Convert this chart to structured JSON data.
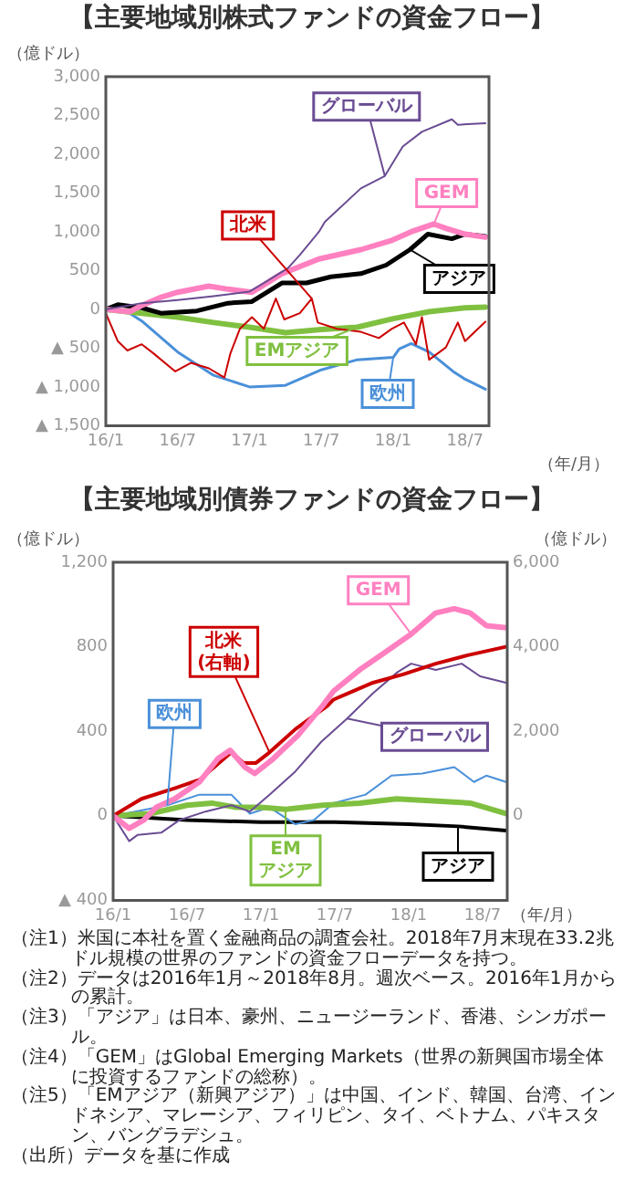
{
  "chart_data": [
    {
      "type": "line",
      "title": "【主要地域別株式ファンドの資金フロー】",
      "ylabel": "（億ドル）",
      "xlabel": "（年/月）",
      "xlim": [
        "2016-01-01",
        "2018-09-01"
      ],
      "xticks": [
        {
          "value": "2016-01",
          "label": "16/1"
        },
        {
          "value": "2016-07",
          "label": "16/7"
        },
        {
          "value": "2017-01",
          "label": "17/1"
        },
        {
          "value": "2017-07",
          "label": "17/7"
        },
        {
          "value": "2018-01",
          "label": "18/1"
        },
        {
          "value": "2018-07",
          "label": "18/7"
        }
      ],
      "ylim": [
        -1500,
        3000
      ],
      "yticks": [
        {
          "value": -1500,
          "label": "▲ 1,500"
        },
        {
          "value": -1000,
          "label": "▲ 1,000"
        },
        {
          "value": -500,
          "label": "▲ 500"
        },
        0,
        500,
        {
          "value": 1000,
          "label": "1,000"
        },
        {
          "value": 1500,
          "label": "1,500"
        },
        {
          "value": 2000,
          "label": "2,000"
        },
        {
          "value": 2500,
          "label": "2,500"
        },
        {
          "value": 3000,
          "label": "3,000"
        }
      ],
      "series": [
        {
          "name": "グローバル",
          "color": "#6a4c93",
          "x": [
            "2016-01-01",
            "2016-04-01",
            "2016-07-01",
            "2016-10-01",
            "2017-01-01",
            "2017-02-07",
            "2017-04-07",
            "2017-05-07",
            "2017-06-25",
            "2017-07-10",
            "2017-10-10",
            "2017-12-10",
            "2018-01-25",
            "2018-03-13",
            "2018-05-28",
            "2018-06-13",
            "2018-08-22"
          ],
          "values": [
            0,
            80,
            120,
            170,
            230,
            340,
            530,
            700,
            1000,
            1130,
            1560,
            1720,
            2100,
            2290,
            2450,
            2380,
            2400
          ]
        },
        {
          "name": "GEM",
          "color": "#ff80c0",
          "x": [
            "2016-01-01",
            "2016-03-01",
            "2016-04-01",
            "2016-05-16",
            "2016-07-01",
            "2016-09-19",
            "2016-11-07",
            "2017-01-07",
            "2017-03-22",
            "2017-06-25",
            "2017-10-10",
            "2017-12-28",
            "2018-02-16",
            "2018-04-13",
            "2018-05-16",
            "2018-07-01",
            "2018-08-22"
          ],
          "values": [
            0,
            -30,
            50,
            150,
            220,
            300,
            260,
            220,
            460,
            650,
            770,
            890,
            1000,
            1100,
            1040,
            970,
            930
          ]
        },
        {
          "name": "アジア",
          "color": "#000000",
          "x": [
            "2016-01-01",
            "2016-02-01",
            "2016-04-01",
            "2016-05-19",
            "2016-08-19",
            "2016-11-07",
            "2017-01-07",
            "2017-03-22",
            "2017-05-24",
            "2017-07-25",
            "2017-10-10",
            "2017-12-13",
            "2018-02-13",
            "2018-03-28",
            "2018-05-28",
            "2018-07-01",
            "2018-08-22"
          ],
          "values": [
            0,
            60,
            20,
            -50,
            -20,
            80,
            100,
            340,
            340,
            420,
            460,
            570,
            770,
            970,
            910,
            970,
            940
          ]
        },
        {
          "name": "北米",
          "color": "#cc0000",
          "x": [
            "2016-01-01",
            "2016-02-01",
            "2016-02-25",
            "2016-04-01",
            "2016-05-01",
            "2016-06-25",
            "2016-08-04",
            "2016-09-19",
            "2016-10-28",
            "2016-11-13",
            "2016-12-07",
            "2017-01-07",
            "2017-02-07",
            "2017-03-07",
            "2017-03-28",
            "2017-05-07",
            "2017-06-07",
            "2017-06-22",
            "2017-08-10",
            "2017-10-10",
            "2017-11-25",
            "2017-12-28",
            "2018-01-28",
            "2018-02-28",
            "2018-03-13",
            "2018-04-01",
            "2018-05-13",
            "2018-06-13",
            "2018-07-01",
            "2018-08-22"
          ],
          "values": [
            -50,
            -410,
            -530,
            -450,
            -570,
            -800,
            -690,
            -760,
            -880,
            -570,
            -250,
            -100,
            -250,
            140,
            -130,
            -50,
            140,
            -170,
            -250,
            -290,
            -370,
            -250,
            -170,
            -450,
            -100,
            -650,
            -490,
            -170,
            -410,
            -160
          ]
        },
        {
          "name": "EMアジア",
          "color": "#80c040",
          "x": [
            "2016-01-01",
            "2016-04-01",
            "2016-07-01",
            "2016-10-01",
            "2017-01-01",
            "2017-04-01",
            "2017-07-01",
            "2017-10-01",
            "2018-01-01",
            "2018-04-01",
            "2018-07-01",
            "2018-08-22"
          ],
          "values": [
            0,
            -50,
            -100,
            -170,
            -230,
            -300,
            -260,
            -230,
            -120,
            -30,
            20,
            30
          ]
        },
        {
          "name": "欧州",
          "color": "#4a90d9",
          "x": [
            "2016-01-01",
            "2016-03-01",
            "2016-04-01",
            "2016-07-01",
            "2016-10-01",
            "2017-01-01",
            "2017-04-01",
            "2017-07-01",
            "2017-10-01",
            "2018-01-01",
            "2018-01-16",
            "2018-02-16",
            "2018-04-01",
            "2018-06-01",
            "2018-07-01",
            "2018-08-22"
          ],
          "values": [
            0,
            -50,
            -150,
            -550,
            -850,
            -1000,
            -980,
            -780,
            -650,
            -620,
            -510,
            -440,
            -550,
            -800,
            -900,
            -1030
          ]
        }
      ]
    },
    {
      "type": "line",
      "title": "【主要地域別債券ファンドの資金フロー】",
      "ylabel": "（億ドル）",
      "y2label": "（億ドル）",
      "xlabel": "（年/月）",
      "xlim": [
        "2016-01-01",
        "2018-09-01"
      ],
      "xticks": [
        {
          "value": "2016-01",
          "label": "16/1"
        },
        {
          "value": "2016-07",
          "label": "16/7"
        },
        {
          "value": "2017-01",
          "label": "17/1"
        },
        {
          "value": "2017-07",
          "label": "17/7"
        },
        {
          "value": "2018-01",
          "label": "18/1"
        },
        {
          "value": "2018-07",
          "label": "18/7"
        }
      ],
      "ylim": [
        -400,
        1200
      ],
      "yticks": [
        {
          "value": -400,
          "label": "▲ 400"
        },
        0,
        400,
        800,
        {
          "value": 1200,
          "label": "1,200"
        }
      ],
      "y2lim": [
        -2000,
        6000
      ],
      "y2ticks": [
        0,
        {
          "value": 2000,
          "label": "2,000"
        },
        {
          "value": 4000,
          "label": "4,000"
        },
        {
          "value": 6000,
          "label": "6,000"
        }
      ],
      "series": [
        {
          "name": "GEM",
          "color": "#ff80c0",
          "x": [
            "2016-01-01",
            "2016-02-10",
            "2016-03-16",
            "2016-04-16",
            "2016-06-01",
            "2016-08-01",
            "2016-09-16",
            "2016-10-16",
            "2016-11-22",
            "2016-12-16",
            "2017-02-01",
            "2017-04-01",
            "2017-06-01",
            "2017-06-28",
            "2017-09-01",
            "2017-11-01",
            "2018-01-07",
            "2018-03-07",
            "2018-04-22",
            "2018-06-01",
            "2018-07-10",
            "2018-08-28"
          ],
          "values": [
            0,
            -60,
            -20,
            40,
            80,
            160,
            270,
            310,
            230,
            200,
            270,
            380,
            520,
            590,
            690,
            770,
            860,
            960,
            980,
            960,
            900,
            890
          ]
        },
        {
          "name": "北米\n(右軸)",
          "color": "#cc0000",
          "axis": "y2",
          "x": [
            "2016-01-01",
            "2016-03-10",
            "2016-06-01",
            "2016-08-01",
            "2016-10-19",
            "2016-11-19",
            "2016-12-19",
            "2017-01-22",
            "2017-03-25",
            "2017-06-13",
            "2017-06-28",
            "2017-10-04",
            "2017-12-19",
            "2018-03-07",
            "2018-05-25",
            "2018-08-28"
          ],
          "values": [
            0,
            400,
            650,
            850,
            1500,
            1250,
            1250,
            1500,
            2050,
            2600,
            2750,
            3150,
            3350,
            3600,
            3800,
            4000
          ]
        },
        {
          "name": "グローバル",
          "color": "#6a4c93",
          "x": [
            "2016-01-01",
            "2016-02-10",
            "2016-03-01",
            "2016-04-28",
            "2016-06-13",
            "2016-08-16",
            "2016-10-19",
            "2016-12-04",
            "2017-01-22",
            "2017-03-25",
            "2017-05-28",
            "2017-08-01",
            "2017-10-04",
            "2017-12-04",
            "2018-01-07",
            "2018-03-07",
            "2018-05-10",
            "2018-06-25",
            "2018-08-28"
          ],
          "values": [
            0,
            -120,
            -90,
            -80,
            -20,
            20,
            50,
            20,
            100,
            210,
            350,
            460,
            580,
            680,
            720,
            690,
            720,
            660,
            630
          ]
        },
        {
          "name": "EM\nアジア",
          "color": "#80c040",
          "x": [
            "2016-01-01",
            "2016-04-01",
            "2016-07-01",
            "2016-09-01",
            "2016-11-01",
            "2017-01-01",
            "2017-03-01",
            "2017-06-01",
            "2017-09-01",
            "2017-12-01",
            "2018-03-01",
            "2018-06-01",
            "2018-08-28"
          ],
          "values": [
            0,
            10,
            50,
            60,
            40,
            40,
            30,
            50,
            60,
            80,
            70,
            60,
            10
          ]
        },
        {
          "name": "欧州",
          "color": "#4a90d9",
          "x": [
            "2016-01-01",
            "2016-02-25",
            "2016-05-13",
            "2016-08-01",
            "2016-10-19",
            "2016-12-04",
            "2017-01-22",
            "2017-03-25",
            "2017-05-10",
            "2017-06-28",
            "2017-09-16",
            "2017-11-19",
            "2018-02-04",
            "2018-04-22",
            "2018-06-10",
            "2018-07-10",
            "2018-08-28"
          ],
          "values": [
            0,
            20,
            50,
            100,
            100,
            10,
            40,
            -40,
            -20,
            60,
            100,
            190,
            200,
            230,
            160,
            190,
            160
          ]
        },
        {
          "name": "アジア",
          "color": "#000000",
          "x": [
            "2016-01-01",
            "2016-07-01",
            "2017-01-01",
            "2017-07-01",
            "2018-01-01",
            "2018-05-01",
            "2018-08-28"
          ],
          "values": [
            0,
            -20,
            -30,
            -30,
            -40,
            -50,
            -70
          ]
        }
      ],
      "annotations": [
        "（注1）米国に本社を置く金融商品の調査会社。2018年7月末現在33.2兆ドル規模の世界のファンドの資金フローデータを持つ。",
        "（注2）データは2016年1月～2018年8月。週次ベース。2016年1月からの累計。",
        "（注3）「アジア」は日本、豪州、ニュージーランド、香港、シンガポール。",
        "（注4）「GEM」はGlobal Emerging Markets（世界の新興国市場全体に投資するファンドの総称）。",
        "（注5）「EMアジア（新興アジア）」は中国、インド、韓国、台湾、インドネシア、マレーシア、フィリピン、タイ、ベトナム、パキスタン、バングラデシュ。",
        "（出所）データを基に作成"
      ]
    }
  ]
}
